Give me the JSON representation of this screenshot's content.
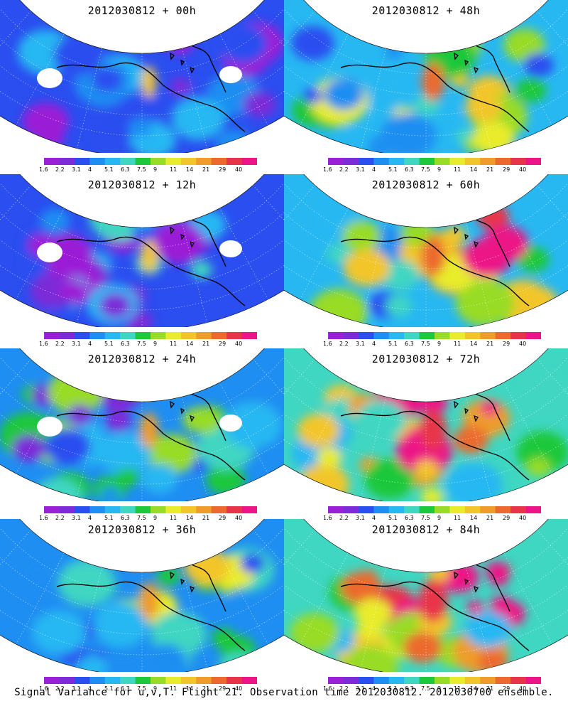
{
  "panels": [
    {
      "title": "2012030812 + 00h",
      "lead_hours": 0
    },
    {
      "title": "2012030812 + 48h",
      "lead_hours": 48
    },
    {
      "title": "2012030812 + 12h",
      "lead_hours": 12
    },
    {
      "title": "2012030812 + 60h",
      "lead_hours": 60
    },
    {
      "title": "2012030812 + 24h",
      "lead_hours": 24
    },
    {
      "title": "2012030812 + 72h",
      "lead_hours": 72
    },
    {
      "title": "2012030812 + 36h",
      "lead_hours": 36
    },
    {
      "title": "2012030812 + 84h",
      "lead_hours": 84
    }
  ],
  "colorbar": {
    "labels": [
      "1.6",
      "2.2",
      "3.1",
      "4",
      "5.1",
      "6.3",
      "7.5",
      "9",
      "11",
      "14",
      "21",
      "29",
      "40"
    ],
    "colors": [
      "#9b1fd6",
      "#7b2bd8",
      "#2a4ef0",
      "#1f8ef2",
      "#27b8f2",
      "#3fd6c2",
      "#1ec83b",
      "#98dc27",
      "#e9ec2c",
      "#f2c62b",
      "#ee9c2a",
      "#ec6a2e",
      "#e8344a",
      "#ec1487"
    ]
  },
  "footer": "Signal Variance for u,v,T. Flight 21. Observation time 2012030812. 2012030700 ensemble."
}
